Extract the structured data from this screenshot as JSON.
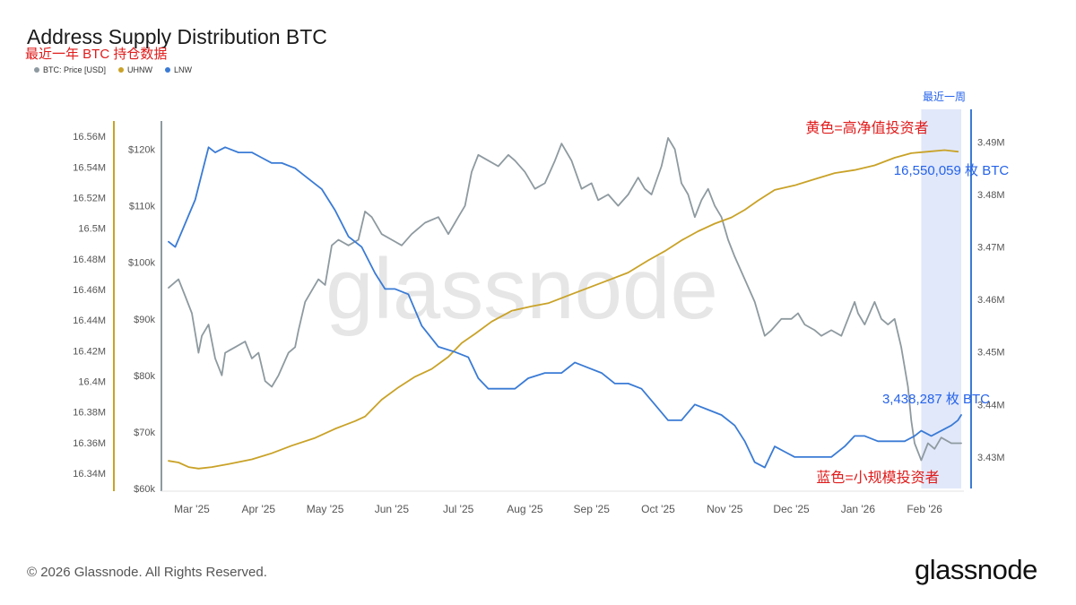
{
  "header": {
    "title": "Address Supply Distribution BTC",
    "subtitle": "最近一年 BTC 持仓数据"
  },
  "legend": [
    {
      "label": "BTC: Price [USD]",
      "color": "#8e9aa0"
    },
    {
      "label": "UHNW",
      "color": "#c9a227"
    },
    {
      "label": "LNW",
      "color": "#3a7bd5"
    }
  ],
  "footer": {
    "copyright": "© 2026 Glassnode. All Rights Reserved.",
    "brand": "glassnode"
  },
  "watermark": "glassnode",
  "chart_data": {
    "type": "line",
    "title": "Address Supply Distribution BTC",
    "x_ticks": [
      "Mar '25",
      "Apr '25",
      "May '25",
      "Jun '25",
      "Jul '25",
      "Aug '25",
      "Sep '25",
      "Oct '25",
      "Nov '25",
      "Dec '25",
      "Jan '26",
      "Feb '26"
    ],
    "x_range": [
      -0.35,
      11.55
    ],
    "axes": {
      "uhnw": {
        "side": "left-outer",
        "ylim": [
          16.33,
          16.57
        ],
        "ticks": [
          "16.34M",
          "16.36M",
          "16.38M",
          "16.4M",
          "16.42M",
          "16.44M",
          "16.46M",
          "16.48M",
          "16.5M",
          "16.52M",
          "16.54M",
          "16.56M"
        ],
        "color": "#c9a227"
      },
      "price": {
        "side": "left-inner",
        "ylim": [
          60,
          125
        ],
        "ticks": [
          "$60k",
          "$70k",
          "$80k",
          "$90k",
          "$100k",
          "$110k",
          "$120k"
        ],
        "color": "#8e9aa0"
      },
      "lnw": {
        "side": "right",
        "ylim": [
          3.424,
          3.494
        ],
        "ticks": [
          "3.43M",
          "3.44M",
          "3.45M",
          "3.46M",
          "3.47M",
          "3.48M",
          "3.49M"
        ],
        "color": "#3a7bd5"
      }
    },
    "series": [
      {
        "name": "BTC: Price [USD]",
        "axis": "price",
        "color": "#8e9aa0",
        "points": [
          [
            -0.35,
            95.5
          ],
          [
            -0.2,
            97
          ],
          [
            -0.1,
            94
          ],
          [
            0,
            91
          ],
          [
            0.1,
            84
          ],
          [
            0.15,
            87
          ],
          [
            0.25,
            89
          ],
          [
            0.35,
            83
          ],
          [
            0.45,
            80
          ],
          [
            0.5,
            84
          ],
          [
            0.65,
            85
          ],
          [
            0.8,
            86
          ],
          [
            0.9,
            83
          ],
          [
            1,
            84
          ],
          [
            1.1,
            79
          ],
          [
            1.2,
            78
          ],
          [
            1.3,
            80
          ],
          [
            1.45,
            84
          ],
          [
            1.55,
            85
          ],
          [
            1.6,
            88
          ],
          [
            1.7,
            93
          ],
          [
            1.8,
            95
          ],
          [
            1.9,
            97
          ],
          [
            2,
            96
          ],
          [
            2.1,
            103
          ],
          [
            2.2,
            104
          ],
          [
            2.35,
            103
          ],
          [
            2.5,
            104
          ],
          [
            2.6,
            109
          ],
          [
            2.7,
            108
          ],
          [
            2.85,
            105
          ],
          [
            3,
            104
          ],
          [
            3.15,
            103
          ],
          [
            3.3,
            105
          ],
          [
            3.5,
            107
          ],
          [
            3.7,
            108
          ],
          [
            3.85,
            105
          ],
          [
            4,
            108
          ],
          [
            4.1,
            110
          ],
          [
            4.2,
            116
          ],
          [
            4.3,
            119
          ],
          [
            4.45,
            118
          ],
          [
            4.6,
            117
          ],
          [
            4.75,
            119
          ],
          [
            4.85,
            118
          ],
          [
            5,
            116
          ],
          [
            5.15,
            113
          ],
          [
            5.3,
            114
          ],
          [
            5.45,
            118
          ],
          [
            5.55,
            121
          ],
          [
            5.7,
            118
          ],
          [
            5.85,
            113
          ],
          [
            6,
            114
          ],
          [
            6.1,
            111
          ],
          [
            6.25,
            112
          ],
          [
            6.4,
            110
          ],
          [
            6.55,
            112
          ],
          [
            6.7,
            115
          ],
          [
            6.8,
            113
          ],
          [
            6.9,
            112
          ],
          [
            7.05,
            117
          ],
          [
            7.15,
            122
          ],
          [
            7.25,
            120
          ],
          [
            7.35,
            114
          ],
          [
            7.45,
            112
          ],
          [
            7.55,
            108
          ],
          [
            7.65,
            111
          ],
          [
            7.75,
            113
          ],
          [
            7.85,
            110
          ],
          [
            7.95,
            108
          ],
          [
            8.05,
            104
          ],
          [
            8.15,
            101
          ],
          [
            8.3,
            97
          ],
          [
            8.45,
            93
          ],
          [
            8.55,
            89
          ],
          [
            8.6,
            87
          ],
          [
            8.7,
            88
          ],
          [
            8.85,
            90
          ],
          [
            9,
            90
          ],
          [
            9.1,
            91
          ],
          [
            9.2,
            89
          ],
          [
            9.35,
            88
          ],
          [
            9.45,
            87
          ],
          [
            9.6,
            88
          ],
          [
            9.75,
            87
          ],
          [
            9.85,
            90
          ],
          [
            9.95,
            93
          ],
          [
            10,
            91
          ],
          [
            10.1,
            89
          ],
          [
            10.25,
            93
          ],
          [
            10.35,
            90
          ],
          [
            10.45,
            89
          ],
          [
            10.55,
            90
          ],
          [
            10.65,
            85
          ],
          [
            10.75,
            78
          ],
          [
            10.8,
            72
          ],
          [
            10.85,
            68
          ],
          [
            10.95,
            65
          ],
          [
            11.05,
            68
          ],
          [
            11.15,
            67
          ],
          [
            11.25,
            69
          ],
          [
            11.4,
            68
          ],
          [
            11.55,
            68
          ]
        ]
      },
      {
        "name": "UHNW",
        "axis": "uhnw",
        "color": "#c9a227",
        "points": [
          [
            -0.35,
            16.348
          ],
          [
            -0.2,
            16.347
          ],
          [
            -0.05,
            16.344
          ],
          [
            0.1,
            16.343
          ],
          [
            0.3,
            16.344
          ],
          [
            0.55,
            16.346
          ],
          [
            0.9,
            16.349
          ],
          [
            1.2,
            16.353
          ],
          [
            1.5,
            16.358
          ],
          [
            1.85,
            16.363
          ],
          [
            2.15,
            16.369
          ],
          [
            2.45,
            16.374
          ],
          [
            2.6,
            16.377
          ],
          [
            2.85,
            16.388
          ],
          [
            3.1,
            16.396
          ],
          [
            3.35,
            16.403
          ],
          [
            3.6,
            16.408
          ],
          [
            3.85,
            16.416
          ],
          [
            4.05,
            16.425
          ],
          [
            4.25,
            16.431
          ],
          [
            4.5,
            16.439
          ],
          [
            4.8,
            16.446
          ],
          [
            5.1,
            16.449
          ],
          [
            5.35,
            16.451
          ],
          [
            5.65,
            16.456
          ],
          [
            5.95,
            16.461
          ],
          [
            6.25,
            16.466
          ],
          [
            6.55,
            16.471
          ],
          [
            6.85,
            16.479
          ],
          [
            7.1,
            16.485
          ],
          [
            7.35,
            16.492
          ],
          [
            7.6,
            16.498
          ],
          [
            7.85,
            16.503
          ],
          [
            8.1,
            16.507
          ],
          [
            8.3,
            16.512
          ],
          [
            8.5,
            16.518
          ],
          [
            8.75,
            16.525
          ],
          [
            9.05,
            16.528
          ],
          [
            9.35,
            16.532
          ],
          [
            9.65,
            16.536
          ],
          [
            9.95,
            16.538
          ],
          [
            10.25,
            16.541
          ],
          [
            10.55,
            16.546
          ],
          [
            10.8,
            16.549
          ],
          [
            11.05,
            16.55
          ],
          [
            11.3,
            16.551
          ],
          [
            11.5,
            16.55
          ]
        ]
      },
      {
        "name": "LNW",
        "axis": "lnw",
        "color": "#3a7bd5",
        "points": [
          [
            -0.35,
            3.471
          ],
          [
            -0.25,
            3.47
          ],
          [
            -0.15,
            3.473
          ],
          [
            -0.05,
            3.476
          ],
          [
            0.05,
            3.479
          ],
          [
            0.15,
            3.484
          ],
          [
            0.25,
            3.489
          ],
          [
            0.35,
            3.488
          ],
          [
            0.5,
            3.489
          ],
          [
            0.7,
            3.488
          ],
          [
            0.9,
            3.488
          ],
          [
            1.05,
            3.487
          ],
          [
            1.2,
            3.486
          ],
          [
            1.35,
            3.486
          ],
          [
            1.55,
            3.485
          ],
          [
            1.75,
            3.483
          ],
          [
            1.95,
            3.481
          ],
          [
            2.15,
            3.477
          ],
          [
            2.35,
            3.472
          ],
          [
            2.55,
            3.47
          ],
          [
            2.75,
            3.465
          ],
          [
            2.9,
            3.462
          ],
          [
            3.05,
            3.462
          ],
          [
            3.25,
            3.461
          ],
          [
            3.45,
            3.455
          ],
          [
            3.7,
            3.451
          ],
          [
            3.95,
            3.45
          ],
          [
            4.15,
            3.449
          ],
          [
            4.3,
            3.445
          ],
          [
            4.45,
            3.443
          ],
          [
            4.65,
            3.443
          ],
          [
            4.85,
            3.443
          ],
          [
            5.05,
            3.445
          ],
          [
            5.3,
            3.446
          ],
          [
            5.55,
            3.446
          ],
          [
            5.75,
            3.448
          ],
          [
            5.95,
            3.447
          ],
          [
            6.15,
            3.446
          ],
          [
            6.35,
            3.444
          ],
          [
            6.55,
            3.444
          ],
          [
            6.75,
            3.443
          ],
          [
            6.95,
            3.44
          ],
          [
            7.15,
            3.437
          ],
          [
            7.35,
            3.437
          ],
          [
            7.55,
            3.44
          ],
          [
            7.75,
            3.439
          ],
          [
            7.95,
            3.438
          ],
          [
            8.15,
            3.436
          ],
          [
            8.3,
            3.433
          ],
          [
            8.45,
            3.429
          ],
          [
            8.6,
            3.428
          ],
          [
            8.75,
            3.432
          ],
          [
            8.9,
            3.431
          ],
          [
            9.05,
            3.43
          ],
          [
            9.2,
            3.43
          ],
          [
            9.4,
            3.43
          ],
          [
            9.6,
            3.43
          ],
          [
            9.8,
            3.432
          ],
          [
            9.95,
            3.434
          ],
          [
            10.1,
            3.434
          ],
          [
            10.3,
            3.433
          ],
          [
            10.5,
            3.433
          ],
          [
            10.7,
            3.433
          ],
          [
            10.85,
            3.434
          ],
          [
            10.95,
            3.435
          ],
          [
            11.1,
            3.434
          ],
          [
            11.25,
            3.435
          ],
          [
            11.4,
            3.436
          ],
          [
            11.5,
            3.437
          ],
          [
            11.55,
            3.438
          ]
        ]
      }
    ],
    "highlight": {
      "x_start": 10.95,
      "x_end": 11.55,
      "label": "最近一周"
    },
    "annotations": {
      "uhnw_label": "黄色=高净值投资者",
      "uhnw_value": "16,550,059 枚 BTC",
      "lnw_label": "蓝色=小规模投资者",
      "lnw_value": "3,438,287 枚 BTC"
    }
  }
}
